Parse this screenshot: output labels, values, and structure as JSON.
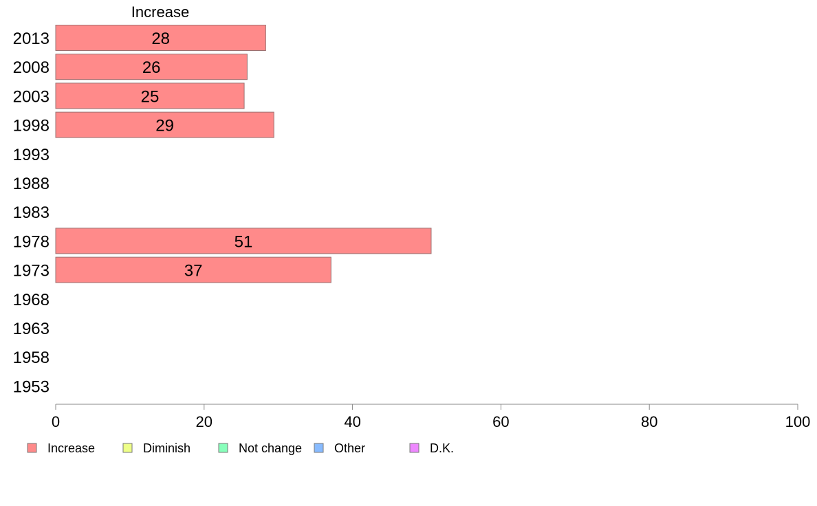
{
  "chart_data": {
    "type": "bar",
    "orientation": "horizontal",
    "panel_title": "Increase",
    "categories": [
      "2013",
      "2008",
      "2003",
      "1998",
      "1993",
      "1988",
      "1983",
      "1978",
      "1973",
      "1968",
      "1963",
      "1958",
      "1953"
    ],
    "series": [
      {
        "name": "Increase",
        "values": [
          28,
          26,
          25,
          29,
          null,
          null,
          null,
          51,
          37,
          null,
          null,
          null,
          null
        ],
        "bar_values": [
          28.3,
          25.8,
          25.4,
          29.4,
          null,
          null,
          null,
          50.6,
          37.1,
          null,
          null,
          null,
          null
        ],
        "color": "#ff8a8a"
      }
    ],
    "xlim": [
      0,
      100
    ],
    "xticks": [
      "0",
      "20",
      "40",
      "60",
      "80",
      "100"
    ],
    "grid": false,
    "legend": {
      "position": "bottom",
      "entries": [
        {
          "label": "Increase",
          "color": "#ff8a8a"
        },
        {
          "label": "Diminish",
          "color": "#eeff88"
        },
        {
          "label": "Not change",
          "color": "#88ffbb"
        },
        {
          "label": "Other",
          "color": "#88bbff"
        },
        {
          "label": "D.K.",
          "color": "#ee88ff"
        }
      ]
    }
  }
}
